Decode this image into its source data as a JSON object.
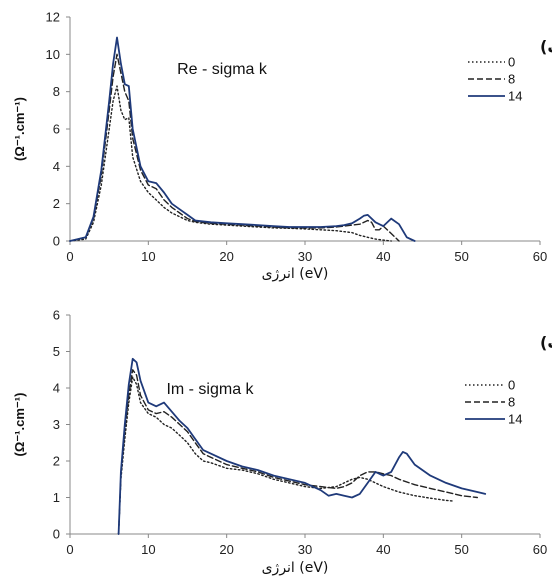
{
  "chart_data": [
    {
      "type": "line",
      "title": "Re - sigma k",
      "panel_label": "(الف)",
      "xlabel": "انرژی (eV)",
      "ylabel": "(Ω⁻¹.cm⁻¹)",
      "xlim": [
        0,
        60
      ],
      "ylim": [
        0,
        12
      ],
      "xticks": [
        "0",
        "10",
        "20",
        "30",
        "40",
        "50",
        "60"
      ],
      "yticks": [
        "0",
        "2",
        "4",
        "6",
        "8",
        "10",
        "12"
      ],
      "legend_position": "right",
      "series": [
        {
          "name": "0",
          "style": "dotted",
          "color": "#222222",
          "x": [
            0,
            2,
            3,
            4,
            5,
            5.5,
            6,
            6.5,
            7,
            7.5,
            8,
            9,
            10,
            11,
            12,
            13,
            14,
            15,
            16,
            17,
            18,
            20,
            22,
            24,
            26,
            28,
            30,
            32,
            34,
            35,
            36,
            37,
            37.5,
            38,
            39,
            40,
            41
          ],
          "y": [
            0,
            0.1,
            1.0,
            3.0,
            6.0,
            7.5,
            8.3,
            7.0,
            6.5,
            6.6,
            4.5,
            3.2,
            2.6,
            2.2,
            1.8,
            1.5,
            1.3,
            1.1,
            1.0,
            0.95,
            0.9,
            0.85,
            0.8,
            0.75,
            0.7,
            0.68,
            0.65,
            0.6,
            0.55,
            0.5,
            0.45,
            0.3,
            0.25,
            0.2,
            0.1,
            0.05,
            0
          ]
        },
        {
          "name": "8",
          "style": "dashed",
          "color": "#222222",
          "x": [
            0,
            2,
            3,
            4,
            5,
            5.5,
            6,
            6.5,
            7,
            7.5,
            8,
            9,
            10,
            11,
            12,
            13,
            14,
            15,
            16,
            18,
            20,
            22,
            24,
            26,
            28,
            30,
            32,
            34,
            35,
            36,
            37,
            38,
            38.5,
            39,
            39.5,
            40,
            41,
            42
          ],
          "y": [
            0,
            0.2,
            1.2,
            3.5,
            7.0,
            8.8,
            10.0,
            9.0,
            8.0,
            7.5,
            5.5,
            3.8,
            3.0,
            2.8,
            2.2,
            1.8,
            1.5,
            1.2,
            1.05,
            0.95,
            0.9,
            0.85,
            0.8,
            0.75,
            0.7,
            0.7,
            0.7,
            0.75,
            0.8,
            0.85,
            0.9,
            1.1,
            1.0,
            0.6,
            0.6,
            0.8,
            0.4,
            0
          ]
        },
        {
          "name": "14",
          "style": "solid",
          "color": "#1f3a7a",
          "x": [
            0,
            2,
            3,
            4,
            5,
            5.5,
            6,
            6.5,
            7,
            7.5,
            8,
            9,
            10,
            11,
            12,
            13,
            14,
            15,
            16,
            18,
            20,
            22,
            24,
            26,
            28,
            30,
            32,
            34,
            35,
            36,
            37,
            37.5,
            38,
            39,
            40,
            41,
            42,
            43,
            44
          ],
          "y": [
            0,
            0.2,
            1.3,
            3.8,
            7.5,
            9.5,
            10.9,
            9.5,
            8.4,
            8.3,
            6.0,
            4.0,
            3.2,
            3.1,
            2.6,
            2.0,
            1.7,
            1.4,
            1.1,
            1.0,
            0.95,
            0.9,
            0.85,
            0.8,
            0.75,
            0.75,
            0.75,
            0.8,
            0.85,
            0.95,
            1.2,
            1.35,
            1.4,
            1.0,
            0.8,
            1.2,
            0.9,
            0.2,
            0
          ]
        }
      ]
    },
    {
      "type": "line",
      "title": "Im - sigma k",
      "panel_label": "(ب)",
      "xlabel": "انرژی (eV)",
      "ylabel": "(Ω⁻¹.cm⁻¹)",
      "xlim": [
        0,
        60
      ],
      "ylim": [
        0,
        6
      ],
      "xticks": [
        "0",
        "10",
        "20",
        "30",
        "40",
        "50",
        "60"
      ],
      "yticks": [
        "0",
        "1",
        "2",
        "3",
        "4",
        "5",
        "6"
      ],
      "legend_position": "right",
      "series": [
        {
          "name": "0",
          "style": "dotted",
          "color": "#222222",
          "x": [
            6.2,
            6.5,
            7,
            7.5,
            8,
            8.5,
            9,
            10,
            11,
            12,
            13,
            14,
            15,
            16,
            17,
            18,
            20,
            22,
            24,
            26,
            28,
            30,
            32,
            34,
            35,
            36,
            37,
            38,
            39,
            40,
            42,
            44,
            46,
            48,
            49
          ],
          "y": [
            0,
            1.5,
            2.6,
            3.6,
            4.3,
            4.1,
            3.6,
            3.3,
            3.2,
            3.0,
            2.9,
            2.7,
            2.5,
            2.2,
            2.0,
            1.95,
            1.8,
            1.75,
            1.65,
            1.5,
            1.4,
            1.3,
            1.25,
            1.3,
            1.4,
            1.5,
            1.55,
            1.5,
            1.4,
            1.3,
            1.15,
            1.05,
            0.98,
            0.92,
            0.9
          ]
        },
        {
          "name": "8",
          "style": "dashed",
          "color": "#222222",
          "x": [
            6.2,
            6.5,
            7,
            7.5,
            8,
            8.5,
            9,
            10,
            11,
            12,
            13,
            14,
            15,
            16,
            17,
            18,
            20,
            22,
            24,
            26,
            28,
            30,
            32,
            34,
            35,
            36,
            37,
            38,
            39,
            40,
            41,
            42,
            44,
            46,
            48,
            50,
            52
          ],
          "y": [
            0,
            1.6,
            2.8,
            3.8,
            4.5,
            4.35,
            3.8,
            3.4,
            3.3,
            3.35,
            3.2,
            3.0,
            2.8,
            2.5,
            2.2,
            2.1,
            1.9,
            1.8,
            1.7,
            1.55,
            1.45,
            1.35,
            1.3,
            1.25,
            1.3,
            1.4,
            1.6,
            1.7,
            1.7,
            1.65,
            1.6,
            1.5,
            1.35,
            1.25,
            1.15,
            1.05,
            1.0
          ]
        },
        {
          "name": "14",
          "style": "solid",
          "color": "#1f3a7a",
          "x": [
            6.2,
            6.5,
            7,
            7.5,
            8,
            8.5,
            9,
            10,
            11,
            12,
            13,
            14,
            15,
            16,
            17,
            18,
            20,
            22,
            24,
            26,
            28,
            30,
            32,
            33,
            34,
            35,
            36,
            37,
            38,
            39,
            40,
            41,
            42,
            42.5,
            43,
            44,
            46,
            48,
            50,
            52,
            53
          ],
          "y": [
            0,
            1.7,
            3.0,
            4.1,
            4.8,
            4.7,
            4.2,
            3.6,
            3.5,
            3.6,
            3.35,
            3.1,
            2.9,
            2.6,
            2.3,
            2.2,
            2.0,
            1.85,
            1.75,
            1.6,
            1.5,
            1.4,
            1.2,
            1.05,
            1.1,
            1.05,
            1.0,
            1.1,
            1.4,
            1.7,
            1.6,
            1.7,
            2.1,
            2.25,
            2.2,
            1.9,
            1.6,
            1.4,
            1.25,
            1.15,
            1.1
          ]
        }
      ]
    }
  ]
}
